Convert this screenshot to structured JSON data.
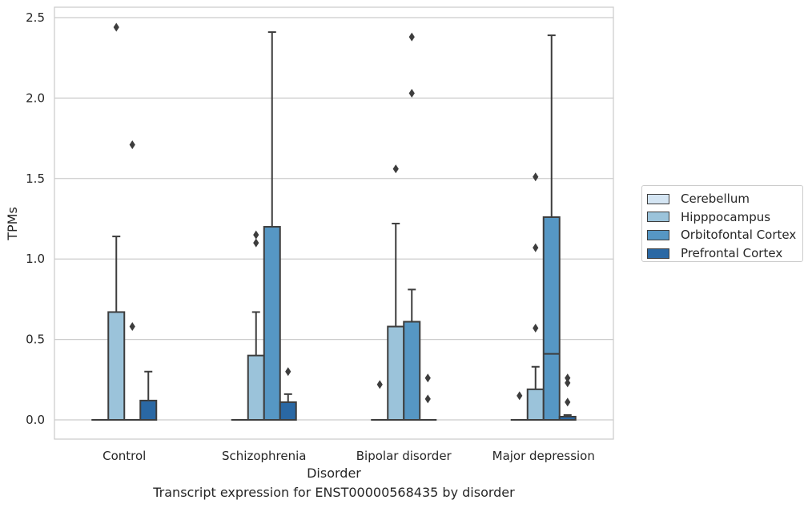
{
  "chart_data": {
    "type": "box",
    "xlabel": "Disorder",
    "ylabel": "TPMs",
    "caption": "Transcript expression for ENST00000568435 by disorder",
    "ylim": [
      -0.12,
      2.56
    ],
    "yticks": [
      0.0,
      0.5,
      1.0,
      1.5,
      2.0,
      2.5
    ],
    "ytick_labels": [
      "0.0",
      "0.5",
      "1.0",
      "1.5",
      "2.0",
      "2.5"
    ],
    "grid": "horizontal",
    "legend_position": "right",
    "categories": [
      "Control",
      "Schizophrenia",
      "Bipolar disorder",
      "Major depression"
    ],
    "series": [
      {
        "name": "Cerebellum",
        "color": "#d4e5f3",
        "boxes": [
          {
            "q1": 0,
            "median": 0,
            "q3": 0,
            "whislo": 0,
            "whishi": 0,
            "fliers": []
          },
          {
            "q1": 0,
            "median": 0,
            "q3": 0,
            "whislo": 0,
            "whishi": 0,
            "fliers": []
          },
          {
            "q1": 0,
            "median": 0,
            "q3": 0,
            "whislo": 0,
            "whishi": 0,
            "fliers": [
              0.22
            ]
          },
          {
            "q1": 0,
            "median": 0,
            "q3": 0,
            "whislo": 0,
            "whishi": 0,
            "fliers": [
              0.15
            ]
          }
        ]
      },
      {
        "name": "Hipppocampus",
        "color": "#9bc3da",
        "boxes": [
          {
            "q1": 0,
            "median": 0,
            "q3": 0.67,
            "whislo": 0,
            "whishi": 1.14,
            "fliers": [
              2.44
            ]
          },
          {
            "q1": 0,
            "median": 0,
            "q3": 0.4,
            "whislo": 0,
            "whishi": 0.67,
            "fliers": [
              1.1,
              1.15
            ]
          },
          {
            "q1": 0,
            "median": 0,
            "q3": 0.58,
            "whislo": 0,
            "whishi": 1.22,
            "fliers": [
              1.56
            ]
          },
          {
            "q1": 0,
            "median": 0,
            "q3": 0.19,
            "whislo": 0,
            "whishi": 0.33,
            "fliers": [
              0.57,
              1.07,
              1.51
            ]
          }
        ]
      },
      {
        "name": "Orbitofontal Cortex",
        "color": "#5697c4",
        "boxes": [
          {
            "q1": 0,
            "median": 0,
            "q3": 0,
            "whislo": 0,
            "whishi": 0,
            "fliers": [
              0.58,
              1.71
            ]
          },
          {
            "q1": 0,
            "median": 0,
            "q3": 1.2,
            "whislo": 0,
            "whishi": 2.41,
            "fliers": []
          },
          {
            "q1": 0,
            "median": 0,
            "q3": 0.61,
            "whislo": 0,
            "whishi": 0.81,
            "fliers": [
              2.03,
              2.38
            ]
          },
          {
            "q1": 0,
            "median": 0.41,
            "q3": 1.26,
            "whislo": 0,
            "whishi": 2.39,
            "fliers": []
          }
        ]
      },
      {
        "name": "Prefrontal Cortex",
        "color": "#2a68a4",
        "boxes": [
          {
            "q1": 0,
            "median": 0,
            "q3": 0.12,
            "whislo": 0,
            "whishi": 0.3,
            "fliers": []
          },
          {
            "q1": 0,
            "median": 0,
            "q3": 0.11,
            "whislo": 0,
            "whishi": 0.16,
            "fliers": [
              0.3
            ]
          },
          {
            "q1": 0,
            "median": 0,
            "q3": 0,
            "whislo": 0,
            "whishi": 0,
            "fliers": [
              0.13,
              0.26
            ]
          },
          {
            "q1": 0,
            "median": 0,
            "q3": 0.02,
            "whislo": 0,
            "whishi": 0.03,
            "fliers": [
              0.11,
              0.23,
              0.26
            ]
          }
        ]
      }
    ]
  }
}
